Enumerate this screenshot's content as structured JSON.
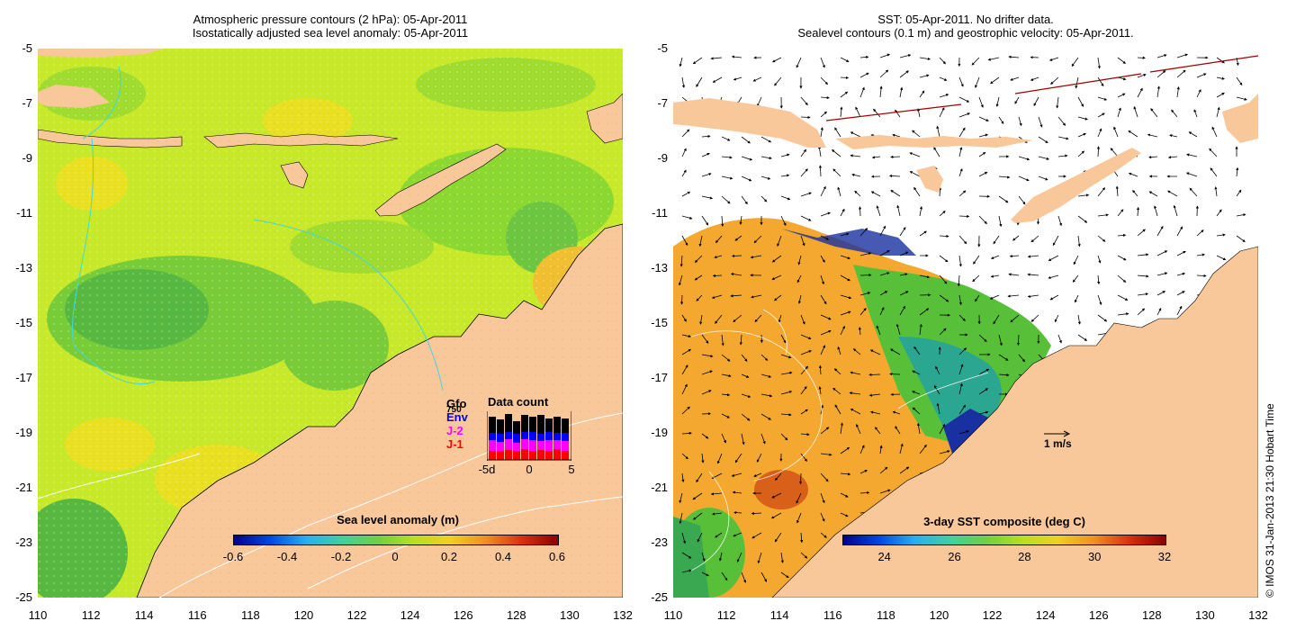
{
  "left_panel": {
    "title_line1": "Atmospheric pressure contours (2 hPa): 05-Apr-2011",
    "title_line2": "Isostatically adjusted sea level anomaly: 05-Apr-2011",
    "colorbar": {
      "title": "Sea level anomaly (m)",
      "tick_labels": [
        "-0.6",
        "-0.4",
        "-0.2",
        "0",
        "0.2",
        "0.4",
        "0.6"
      ],
      "range": [
        -0.6,
        0.6
      ]
    },
    "inset": {
      "title": "Data count",
      "legend": [
        "Gfo",
        "Env",
        "J-2",
        "J-1"
      ],
      "legend_colors": [
        "#000000",
        "#0000ff",
        "#ff00ff",
        "#ff0000"
      ],
      "legend_overlay_label": "750",
      "x_tick_labels": [
        "-5d",
        "0",
        "5"
      ]
    }
  },
  "right_panel": {
    "title_line1": "SST: 05-Apr-2011. No drifter data.",
    "title_line2": "Sealevel contours (0.1 m) and geostrophic velocity: 05-Apr-2011.",
    "colorbar": {
      "title": "3-day SST composite (deg C)",
      "tick_labels": [
        "24",
        "26",
        "28",
        "30",
        "32"
      ],
      "range": [
        22.8,
        32
      ]
    },
    "velocity_scale_label": "1 m/s"
  },
  "axes": {
    "x_tick_labels": [
      "110",
      "112",
      "114",
      "116",
      "118",
      "120",
      "122",
      "124",
      "126",
      "128",
      "130",
      "132"
    ],
    "y_tick_labels": [
      "-5",
      "-7",
      "-9",
      "-11",
      "-13",
      "-15",
      "-17",
      "-19",
      "-21",
      "-23",
      "-25"
    ],
    "lon_range": [
      110,
      132
    ],
    "lat_range": [
      -25,
      -5
    ]
  },
  "colors": {
    "land": "#f9c89a",
    "sla_green": "#8ad830",
    "sla_light": "#c8e82a",
    "sla_yellow": "#e8e020",
    "sst_orange": "#f4a830",
    "sst_green": "#58c038",
    "sst_blue": "#1830a0"
  },
  "credit": "© IMOS 31-Jan-2013 21:30 Hobart Time"
}
